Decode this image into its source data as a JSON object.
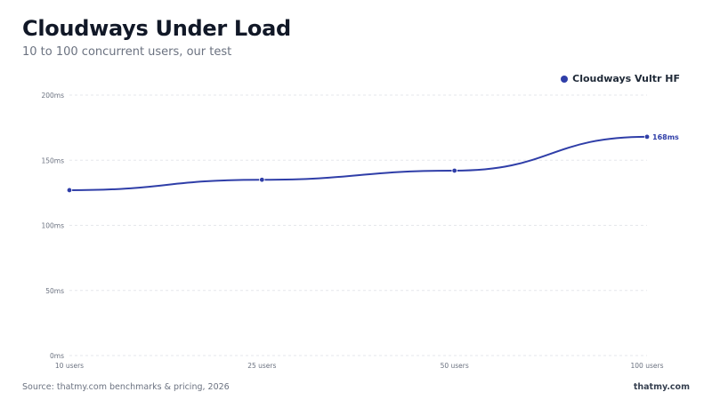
{
  "header": {
    "title": "Cloudways Under Load",
    "subtitle": "10 to 100 concurrent users, our test"
  },
  "footer": {
    "source": "Source: thatmy.com benchmarks & pricing, 2026",
    "brand": "thatmy.com"
  },
  "colors": {
    "series": "#2f3ea8",
    "grid": "#e5e7eb",
    "axis_text": "#6b7280"
  },
  "chart_data": {
    "type": "line",
    "categories": [
      "10 users",
      "25 users",
      "50 users",
      "100 users"
    ],
    "series": [
      {
        "name": "Cloudways Vultr HF",
        "values": [
          127,
          135,
          142,
          168
        ]
      }
    ],
    "end_label": "168ms",
    "yticks": [
      "0ms",
      "50ms",
      "100ms",
      "150ms",
      "200ms"
    ],
    "ylim": [
      0,
      200
    ],
    "grid": true,
    "legend_position": "top-right"
  }
}
